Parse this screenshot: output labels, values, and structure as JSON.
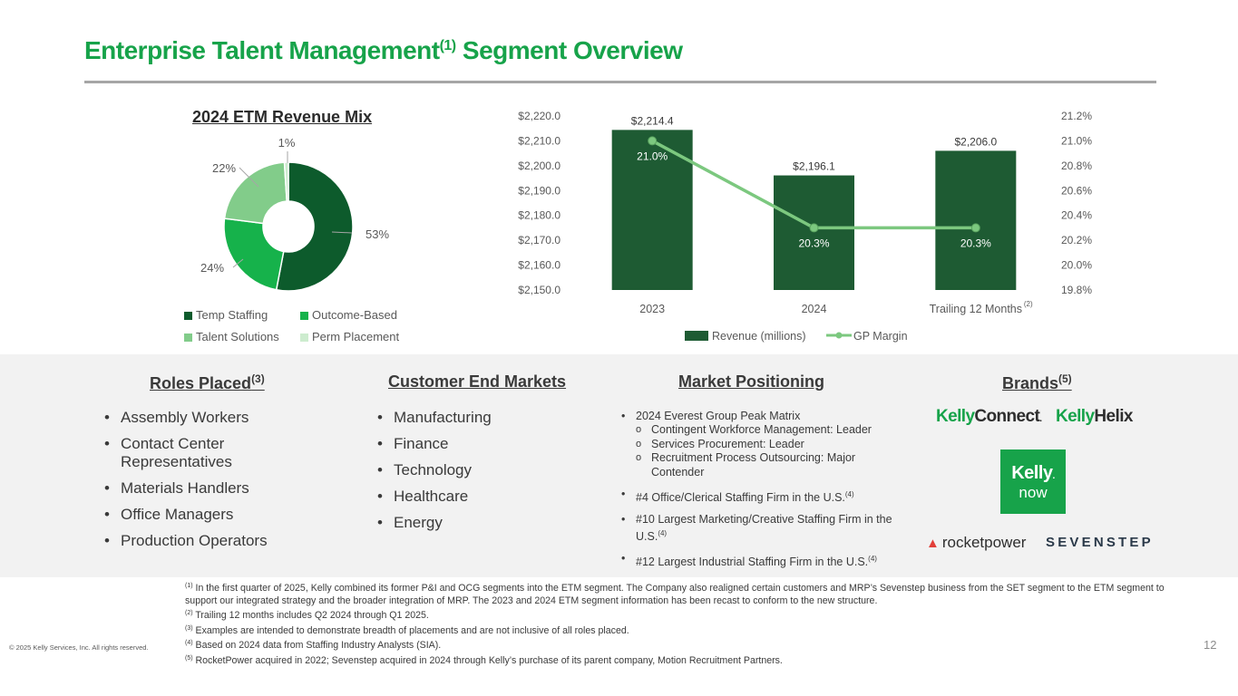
{
  "title": {
    "main": "Enterprise Talent Management",
    "sup": "(1)",
    "rest": " Segment Overview"
  },
  "chart_data": [
    {
      "type": "pie",
      "title": "2024 ETM Revenue Mix",
      "labels": [
        "Temp Staffing",
        "Outcome-Based",
        "Talent Solutions",
        "Perm Placement"
      ],
      "values": [
        53,
        24,
        22,
        1
      ],
      "value_labels": [
        "53%",
        "24%",
        "22%",
        "1%"
      ],
      "colors": [
        "#0d5b2c",
        "#16b24b",
        "#82cc8a",
        "#cdeccf"
      ],
      "donut": true,
      "legend": "bottom"
    },
    {
      "type": "bar",
      "categories": [
        "2023",
        "2024",
        "Trailing 12 Months"
      ],
      "category_sup": [
        "",
        "",
        "(2)"
      ],
      "series": [
        {
          "name": "Revenue (millions)",
          "values": [
            2214.4,
            2196.1,
            2206.0
          ],
          "labels": [
            "$2,214.4",
            "$2,196.1",
            "$2,206.0"
          ],
          "color": "#1e5b33",
          "axis": "left"
        },
        {
          "name": "GP Margin",
          "type": "line",
          "values": [
            21.0,
            20.3,
            20.3
          ],
          "labels": [
            "21.0%",
            "20.3%",
            "20.3%"
          ],
          "color": "#7cc87f",
          "axis": "right"
        }
      ],
      "ylim_left": [
        2150,
        2220
      ],
      "yticks_left": [
        "$2,220.0",
        "$2,210.0",
        "$2,200.0",
        "$2,190.0",
        "$2,180.0",
        "$2,170.0",
        "$2,160.0",
        "$2,150.0"
      ],
      "ylim_right": [
        19.8,
        21.2
      ],
      "yticks_right": [
        "21.2%",
        "21.0%",
        "20.8%",
        "20.6%",
        "20.4%",
        "20.2%",
        "20.0%",
        "19.8%"
      ],
      "grid": false,
      "legend": "bottom"
    }
  ],
  "sections": {
    "roles": {
      "title": "Roles Placed",
      "sup": "(3)",
      "items": [
        "Assembly Workers",
        "Contact Center Representatives",
        "Materials Handlers",
        "Office Managers",
        "Production Operators"
      ]
    },
    "markets": {
      "title": "Customer End Markets",
      "items": [
        "Manufacturing",
        "Finance",
        "Technology",
        "Healthcare",
        "Energy"
      ]
    },
    "positioning": {
      "title": "Market Positioning",
      "peak": "2024 Everest Group Peak Matrix",
      "sub": [
        "Contingent Workforce Management: Leader",
        "Services Procurement: Leader",
        "Recruitment Process Outsourcing: Major Contender"
      ],
      "items": [
        {
          "text": "#4 Office/Clerical Staffing Firm in the U.S.",
          "sup": "(4)"
        },
        {
          "text": "#10 Largest Marketing/Creative Staffing Firm in the U.S.",
          "sup": "(4)"
        },
        {
          "text": "#12 Largest Industrial Staffing Firm in the U.S.",
          "sup": "(4)"
        }
      ]
    },
    "brands": {
      "title": "Brands",
      "sup": "(5)",
      "kelly_connect": [
        "Kelly",
        "Connect",
        "."
      ],
      "kelly_helix": [
        "Kelly",
        "Helix"
      ],
      "kelly_now": [
        "Kelly",
        ".",
        "now"
      ],
      "rocketpower": "rocketpower",
      "sevenstep": "SEVENSTEP"
    }
  },
  "footnotes": [
    {
      "sup": "(1)",
      "text": " In the first quarter of 2025, Kelly combined its former P&I and OCG segments into the ETM segment. The Company also realigned certain customers and MRP’s Sevenstep business from the SET segment to the ETM segment to support our integrated strategy and the broader integration of MRP. The 2023 and 2024 ETM segment information has been recast to conform to the new structure."
    },
    {
      "sup": "(2)",
      "text": " Trailing 12 months includes Q2 2024 through Q1 2025."
    },
    {
      "sup": "(3)",
      "text": " Examples are intended to demonstrate breadth of placements and are not inclusive of all roles placed."
    },
    {
      "sup": "(4)",
      "text": " Based on 2024 data from Staffing Industry Analysts (SIA)."
    },
    {
      "sup": "(5)",
      "text": " RocketPower acquired in 2022; Sevenstep acquired in 2024 through Kelly’s purchase of its parent company, Motion Recruitment Partners."
    }
  ],
  "copyright": "© 2025 Kelly Services, Inc. All rights reserved.",
  "page_number": "12"
}
